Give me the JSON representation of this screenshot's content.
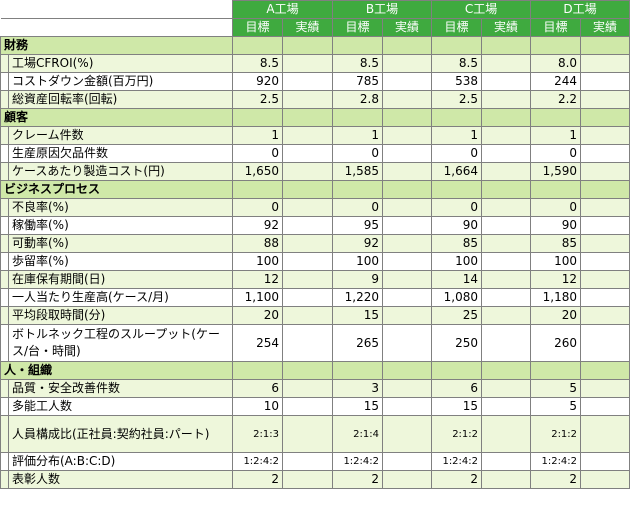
{
  "header": {
    "plants": [
      "A工場",
      "B工場",
      "C工場",
      "D工場"
    ],
    "target_label": "目標",
    "actual_label": "実績"
  },
  "sections": [
    {
      "title": "財務",
      "rows": [
        {
          "label": "工場CFROI(%)",
          "values": [
            "8.5",
            "8.5",
            "8.5",
            "8.0"
          ]
        },
        {
          "label": "コストダウン金額(百万円)",
          "values": [
            "920",
            "785",
            "538",
            "244"
          ]
        },
        {
          "label": "総資産回転率(回転)",
          "values": [
            "2.5",
            "2.8",
            "2.5",
            "2.2"
          ]
        }
      ]
    },
    {
      "title": "顧客",
      "rows": [
        {
          "label": "クレーム件数",
          "values": [
            "1",
            "1",
            "1",
            "1"
          ]
        },
        {
          "label": "生産原因欠品件数",
          "values": [
            "0",
            "0",
            "0",
            "0"
          ]
        },
        {
          "label": "ケースあたり製造コスト(円)",
          "values": [
            "1,650",
            "1,585",
            "1,664",
            "1,590"
          ]
        }
      ]
    },
    {
      "title": "ビジネスプロセス",
      "rows": [
        {
          "label": "不良率(%)",
          "values": [
            "0",
            "0",
            "0",
            "0"
          ]
        },
        {
          "label": "稼働率(%)",
          "values": [
            "92",
            "95",
            "90",
            "90"
          ]
        },
        {
          "label": "可動率(%)",
          "values": [
            "88",
            "92",
            "85",
            "85"
          ]
        },
        {
          "label": "歩留率(%)",
          "values": [
            "100",
            "100",
            "100",
            "100"
          ]
        },
        {
          "label": "在庫保有期間(日)",
          "values": [
            "12",
            "9",
            "14",
            "12"
          ]
        },
        {
          "label": "一人当たり生産高(ケース/月)",
          "values": [
            "1,100",
            "1,220",
            "1,080",
            "1,180"
          ]
        },
        {
          "label": "平均段取時間(分)",
          "values": [
            "20",
            "15",
            "25",
            "20"
          ]
        },
        {
          "label": "ボトルネック工程のスループット(ケース/台・時間)",
          "values": [
            "254",
            "265",
            "250",
            "260"
          ],
          "tall": true
        }
      ]
    },
    {
      "title": "人・組織",
      "rows": [
        {
          "label": "品質・安全改善件数",
          "values": [
            "6",
            "3",
            "6",
            "5"
          ]
        },
        {
          "label": "多能工人数",
          "values": [
            "10",
            "15",
            "15",
            "5"
          ]
        },
        {
          "label": "人員構成比(正社員:契約社員:パート)",
          "values": [
            "2:1:3",
            "2:1:4",
            "2:1:2",
            "2:1:2"
          ],
          "tall": true,
          "small": true
        },
        {
          "label": "評価分布(A:B:C:D)",
          "values": [
            "1:2:4:2",
            "1:2:4:2",
            "1:2:4:2",
            "1:2:4:2"
          ],
          "small": true
        },
        {
          "label": "表彰人数",
          "values": [
            "2",
            "2",
            "2",
            "2"
          ]
        }
      ]
    }
  ]
}
